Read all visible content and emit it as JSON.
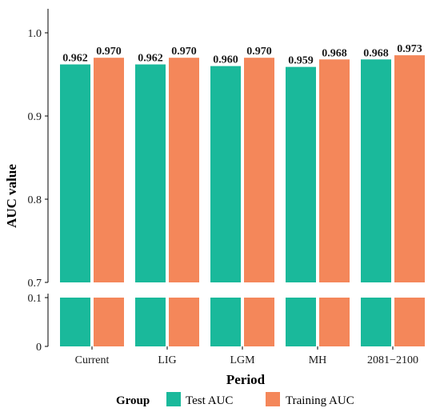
{
  "chart_data": {
    "type": "bar",
    "title": "",
    "xlabel": "Period",
    "ylabel": "AUC value",
    "categories": [
      "Current",
      "LIG",
      "LGM",
      "MH",
      "2081−2100"
    ],
    "series": [
      {
        "name": "Test AUC",
        "values": [
          0.962,
          0.962,
          0.96,
          0.959,
          0.968
        ],
        "color": "#1ab99b"
      },
      {
        "name": "Training AUC",
        "values": [
          0.97,
          0.97,
          0.97,
          0.968,
          0.973
        ],
        "color": "#f4875a"
      }
    ],
    "value_labels": {
      "test": [
        "0.962",
        "0.962",
        "0.960",
        "0.959",
        "0.968"
      ],
      "training": [
        "0.970",
        "0.970",
        "0.970",
        "0.968",
        "0.973"
      ]
    },
    "axis_break": {
      "lower_range": [
        0,
        0.1
      ],
      "upper_range": [
        0.7,
        1.0
      ]
    },
    "ylim": [
      0,
      1.0
    ],
    "yticks_upper": [
      "0.7",
      "0.8",
      "0.9",
      "1.0"
    ],
    "yticks_lower": [
      "0",
      "0.1"
    ],
    "grid": false,
    "legend": {
      "title": "Group",
      "placement": "bottom",
      "items": [
        "Test AUC",
        "Training AUC"
      ]
    }
  }
}
